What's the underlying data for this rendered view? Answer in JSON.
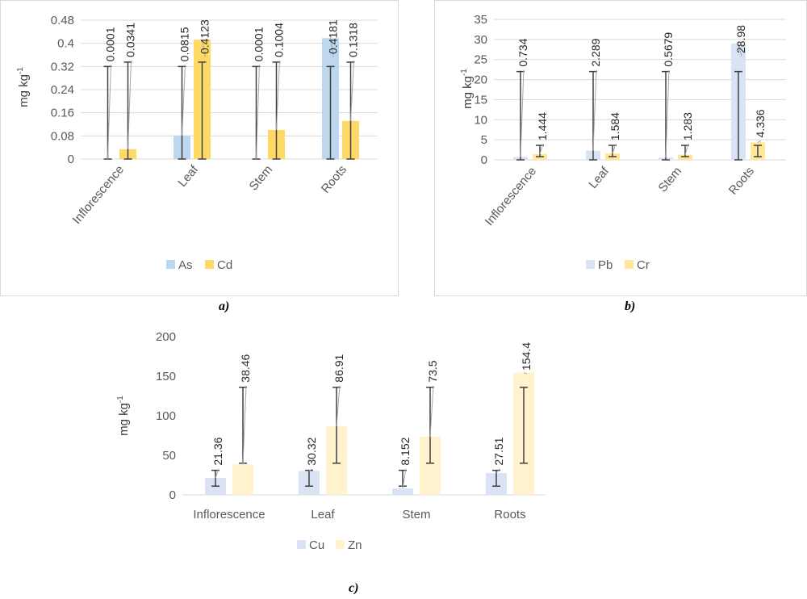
{
  "captions": {
    "a": "a)",
    "b": "b)",
    "c": "c)"
  },
  "colors": {
    "As": "#bdd7ee",
    "Cd": "#ffd966",
    "Pb": "#dae3f3",
    "Cr": "#ffe699",
    "Cu": "#dae3f3",
    "Zn": "#fff2cc",
    "gridline": "#d9d9d9",
    "axis_text": "#595959",
    "error_bar": "#404040",
    "leader": "#a6a6a6"
  },
  "chart_data": [
    {
      "id": "a",
      "type": "bar",
      "ylabel": "mg kg",
      "ylabel_sup": "-1",
      "ylim": [
        0,
        0.48
      ],
      "yticks": [
        "0",
        "0.08",
        "0.16",
        "0.24",
        "0.32",
        "0.4",
        "0.48"
      ],
      "ytick_values": [
        0,
        0.08,
        0.16,
        0.24,
        0.32,
        0.4,
        0.48
      ],
      "categories": [
        "Inflorescence",
        "Leaf",
        "Stem",
        "Roots"
      ],
      "x_tick_rotation": "rotated",
      "legend_position": "bottom",
      "grid": true,
      "series": [
        {
          "name": "As",
          "values": [
            0.0001,
            0.0815,
            0.0001,
            0.4181
          ],
          "labels": [
            "0.0001",
            "0.0815",
            "0.0001",
            "0.4181"
          ],
          "err_low": [
            0,
            0,
            0,
            0
          ],
          "err_high": [
            0.32,
            0.32,
            0.32,
            0.32
          ]
        },
        {
          "name": "Cd",
          "values": [
            0.0341,
            0.4123,
            0.1004,
            0.1318
          ],
          "labels": [
            "0.0341",
            "0.4123",
            "0.1004",
            "0.1318"
          ],
          "err_low": [
            0,
            0,
            0,
            0
          ],
          "err_high": [
            0.335,
            0.335,
            0.335,
            0.335
          ]
        }
      ]
    },
    {
      "id": "b",
      "type": "bar",
      "ylabel": "mg kg",
      "ylabel_sup": "-1",
      "ylim": [
        0,
        35
      ],
      "yticks": [
        "0",
        "5",
        "10",
        "15",
        "20",
        "25",
        "30",
        "35"
      ],
      "ytick_values": [
        0,
        5,
        10,
        15,
        20,
        25,
        30,
        35
      ],
      "categories": [
        "Inflorescence",
        "Leaf",
        "Stem",
        "Roots"
      ],
      "x_tick_rotation": "rotated",
      "legend_position": "bottom",
      "grid": true,
      "series": [
        {
          "name": "Pb",
          "values": [
            0.734,
            2.289,
            0.5679,
            28.98
          ],
          "labels": [
            "0.734",
            "2.289",
            "0.5679",
            "28.98"
          ],
          "err_low": [
            0,
            0,
            0,
            0
          ],
          "err_high": [
            22,
            22,
            22,
            22
          ]
        },
        {
          "name": "Cr",
          "values": [
            1.444,
            1.584,
            1.283,
            4.336
          ],
          "labels": [
            "1.444",
            "1.584",
            "1.283",
            "4.336"
          ],
          "err_low": [
            0.8,
            0.8,
            0.8,
            0.8
          ],
          "err_high": [
            3.6,
            3.6,
            3.6,
            3.6
          ]
        }
      ]
    },
    {
      "id": "c",
      "type": "bar",
      "ylabel": "mg kg",
      "ylabel_sup": "-1",
      "ylim": [
        0,
        200
      ],
      "yticks": [
        "0",
        "50",
        "100",
        "150",
        "200"
      ],
      "ytick_values": [
        0,
        50,
        100,
        150,
        200
      ],
      "categories": [
        "Inflorescence",
        "Leaf",
        "Stem",
        "Roots"
      ],
      "x_tick_rotation": "horizontal",
      "legend_position": "bottom",
      "grid": false,
      "series": [
        {
          "name": "Cu",
          "values": [
            21.36,
            30.32,
            8.152,
            27.51
          ],
          "labels": [
            "21.36",
            "30.32",
            "8.152",
            "27.51"
          ],
          "err_low": [
            11,
            11,
            11,
            11
          ],
          "err_high": [
            31,
            31,
            31,
            31
          ]
        },
        {
          "name": "Zn",
          "values": [
            38.46,
            86.91,
            73.5,
            154.4
          ],
          "labels": [
            "38.46",
            "86.91",
            "73.5",
            "154.4"
          ],
          "err_low": [
            40,
            40,
            40,
            40
          ],
          "err_high": [
            136,
            136,
            136,
            136
          ]
        }
      ]
    }
  ]
}
